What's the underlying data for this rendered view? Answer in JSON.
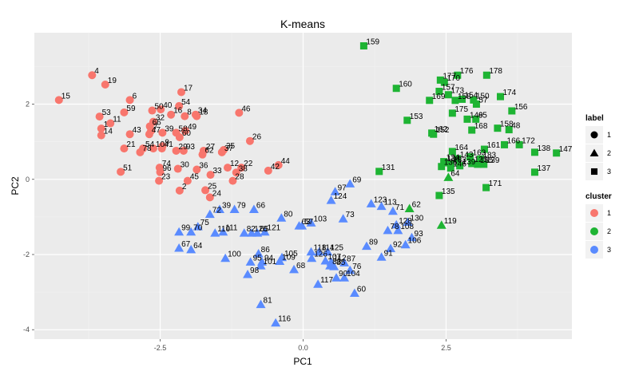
{
  "chart_data": {
    "type": "scatter",
    "title": "K-means",
    "xlabel": "PC1",
    "ylabel": "PC2",
    "xlim": [
      -4.7,
      4.7
    ],
    "ylim": [
      -4.25,
      3.9
    ],
    "x_ticks": [
      -2.5,
      0.0,
      2.5
    ],
    "x_tick_labels": [
      "-2.5",
      "0.0",
      "2.5"
    ],
    "y_ticks": [
      -4,
      -2,
      0,
      2
    ],
    "y_tick_labels": [
      "-4",
      "-2",
      "0",
      "2"
    ],
    "grid": true,
    "legend_position": "right",
    "legends": [
      {
        "title": "label",
        "entries": [
          {
            "key": "1",
            "shape": "circle"
          },
          {
            "key": "2",
            "shape": "triangle"
          },
          {
            "key": "3",
            "shape": "square"
          }
        ]
      },
      {
        "title": "cluster",
        "entries": [
          {
            "key": "1",
            "color": "#F8766D"
          },
          {
            "key": "2",
            "color": "#1EB433"
          },
          {
            "key": "3",
            "color": "#5A8BFF"
          }
        ]
      }
    ],
    "series": [
      {
        "name": "1",
        "cluster": 1,
        "color": "#F8766D",
        "shape": "circle",
        "points": [
          {
            "label": "4",
            "x": -3.69,
            "y": 2.77
          },
          {
            "label": "19",
            "x": -3.46,
            "y": 2.52
          },
          {
            "label": "15",
            "x": -4.27,
            "y": 2.11
          },
          {
            "label": "6",
            "x": -3.03,
            "y": 2.11
          },
          {
            "label": "17",
            "x": -2.13,
            "y": 2.32
          },
          {
            "label": "54",
            "x": -2.17,
            "y": 1.95
          },
          {
            "label": "40",
            "x": -2.49,
            "y": 1.86
          },
          {
            "label": "50",
            "x": -2.64,
            "y": 1.83
          },
          {
            "label": "59",
            "x": -3.13,
            "y": 1.78
          },
          {
            "label": "16",
            "x": -2.31,
            "y": 1.72
          },
          {
            "label": "8",
            "x": -2.07,
            "y": 1.68
          },
          {
            "label": "34",
            "x": -1.88,
            "y": 1.72
          },
          {
            "label": "18",
            "x": -1.86,
            "y": 1.68
          },
          {
            "label": "46",
            "x": -1.12,
            "y": 1.77
          },
          {
            "label": "53",
            "x": -3.56,
            "y": 1.67
          },
          {
            "label": "32",
            "x": -2.62,
            "y": 1.53
          },
          {
            "label": "11",
            "x": -3.37,
            "y": 1.49
          },
          {
            "label": "1",
            "x": -3.53,
            "y": 1.35
          },
          {
            "label": "66",
            "x": -2.68,
            "y": 1.41
          },
          {
            "label": "7",
            "x": -2.66,
            "y": 1.29
          },
          {
            "label": "58",
            "x": -2.22,
            "y": 1.24
          },
          {
            "label": "49",
            "x": -2.06,
            "y": 1.29
          },
          {
            "label": "14",
            "x": -3.53,
            "y": 1.17
          },
          {
            "label": "43",
            "x": -3.03,
            "y": 1.2
          },
          {
            "label": "47",
            "x": -2.69,
            "y": 1.2
          },
          {
            "label": "39",
            "x": -2.46,
            "y": 1.24
          },
          {
            "label": "60",
            "x": -2.16,
            "y": 1.12
          },
          {
            "label": "26",
            "x": -0.93,
            "y": 1.02
          },
          {
            "label": "9",
            "x": -2.46,
            "y": 0.88
          },
          {
            "label": "21",
            "x": -3.13,
            "y": 0.82
          },
          {
            "label": "54",
            "x": -2.8,
            "y": 0.82
          },
          {
            "label": "10",
            "x": -2.62,
            "y": 0.82
          },
          {
            "label": "41",
            "x": -2.47,
            "y": 0.82
          },
          {
            "label": "29",
            "x": -2.22,
            "y": 0.76
          },
          {
            "label": "93",
            "x": -2.09,
            "y": 0.76
          },
          {
            "label": "78",
            "x": -2.85,
            "y": 0.72
          },
          {
            "label": "35",
            "x": -1.39,
            "y": 0.78
          },
          {
            "label": "37",
            "x": -1.42,
            "y": 0.72
          },
          {
            "label": "27",
            "x": -1.74,
            "y": 0.76
          },
          {
            "label": "62",
            "x": -1.76,
            "y": 0.66
          },
          {
            "label": "44",
            "x": -0.43,
            "y": 0.38
          },
          {
            "label": "42",
            "x": -0.61,
            "y": 0.23
          },
          {
            "label": "51",
            "x": -3.19,
            "y": 0.2
          },
          {
            "label": "30",
            "x": -2.19,
            "y": 0.28
          },
          {
            "label": "36",
            "x": -1.86,
            "y": 0.26
          },
          {
            "label": "12",
            "x": -1.32,
            "y": 0.31
          },
          {
            "label": "22",
            "x": -1.08,
            "y": 0.31
          },
          {
            "label": "33",
            "x": -1.62,
            "y": 0.12
          },
          {
            "label": "38",
            "x": -1.17,
            "y": 0.18
          },
          {
            "label": "45",
            "x": -2.02,
            "y": -0.04
          },
          {
            "label": "28",
            "x": -1.23,
            "y": -0.04
          },
          {
            "label": "23",
            "x": -2.52,
            "y": -0.04
          },
          {
            "label": "96",
            "x": -2.5,
            "y": 0.19
          },
          {
            "label": "74",
            "x": -2.51,
            "y": 0.31
          },
          {
            "label": "25",
            "x": -1.71,
            "y": -0.29
          },
          {
            "label": "2",
            "x": -2.16,
            "y": -0.3
          },
          {
            "label": "24",
            "x": -1.63,
            "y": -0.48
          }
        ]
      },
      {
        "name": "2",
        "cluster": 2,
        "color": "#1EB433",
        "shape": "square",
        "points": [
          {
            "label": "159",
            "x": 1.06,
            "y": 3.55
          },
          {
            "label": "176",
            "x": 2.7,
            "y": 2.77
          },
          {
            "label": "178",
            "x": 3.21,
            "y": 2.77
          },
          {
            "label": "177",
            "x": 2.4,
            "y": 2.64
          },
          {
            "label": "170",
            "x": 2.47,
            "y": 2.58
          },
          {
            "label": "160",
            "x": 1.63,
            "y": 2.42
          },
          {
            "label": "157",
            "x": 2.38,
            "y": 2.34
          },
          {
            "label": "174",
            "x": 3.45,
            "y": 2.2
          },
          {
            "label": "173",
            "x": 2.54,
            "y": 2.25
          },
          {
            "label": "154",
            "x": 2.78,
            "y": 2.13
          },
          {
            "label": "150",
            "x": 2.98,
            "y": 2.11
          },
          {
            "label": "169",
            "x": 2.21,
            "y": 2.1
          },
          {
            "label": "158",
            "x": 2.66,
            "y": 2.1
          },
          {
            "label": "57",
            "x": 3.03,
            "y": 2.0
          },
          {
            "label": "156",
            "x": 3.65,
            "y": 1.82
          },
          {
            "label": "175",
            "x": 2.61,
            "y": 1.76
          },
          {
            "label": "149",
            "x": 2.87,
            "y": 1.6
          },
          {
            "label": "65",
            "x": 3.02,
            "y": 1.6
          },
          {
            "label": "153",
            "x": 1.82,
            "y": 1.57
          },
          {
            "label": "158",
            "x": 3.4,
            "y": 1.36
          },
          {
            "label": "48",
            "x": 3.6,
            "y": 1.32
          },
          {
            "label": "168",
            "x": 2.95,
            "y": 1.31
          },
          {
            "label": "162",
            "x": 2.25,
            "y": 1.23
          },
          {
            "label": "152",
            "x": 2.28,
            "y": 1.2
          },
          {
            "label": "166",
            "x": 3.52,
            "y": 0.92
          },
          {
            "label": "172",
            "x": 3.78,
            "y": 0.92
          },
          {
            "label": "161",
            "x": 3.17,
            "y": 0.8
          },
          {
            "label": "138",
            "x": 4.05,
            "y": 0.72
          },
          {
            "label": "147",
            "x": 4.43,
            "y": 0.7
          },
          {
            "label": "164",
            "x": 2.61,
            "y": 0.74
          },
          {
            "label": "163",
            "x": 2.92,
            "y": 0.6
          },
          {
            "label": "143",
            "x": 2.7,
            "y": 0.55
          },
          {
            "label": "183",
            "x": 3.1,
            "y": 0.54
          },
          {
            "label": "124",
            "x": 2.46,
            "y": 0.47
          },
          {
            "label": "134",
            "x": 2.47,
            "y": 0.44
          },
          {
            "label": "125",
            "x": 2.95,
            "y": 0.42
          },
          {
            "label": "165",
            "x": 3.05,
            "y": 0.4
          },
          {
            "label": "139",
            "x": 3.16,
            "y": 0.4
          },
          {
            "label": "133",
            "x": 2.58,
            "y": 0.41
          },
          {
            "label": "136",
            "x": 2.42,
            "y": 0.34
          },
          {
            "label": "146",
            "x": 2.58,
            "y": 0.3
          },
          {
            "label": "139",
            "x": 2.74,
            "y": 0.36
          },
          {
            "label": "131",
            "x": 1.33,
            "y": 0.21
          },
          {
            "label": "137",
            "x": 4.05,
            "y": 0.19
          },
          {
            "label": "171",
            "x": 3.2,
            "y": -0.22
          },
          {
            "label": "135",
            "x": 2.38,
            "y": -0.43
          }
        ]
      },
      {
        "name": "2",
        "cluster": 2,
        "color": "#1EB433",
        "shape": "triangle",
        "points": [
          {
            "label": "64",
            "x": 2.54,
            "y": 0.05
          },
          {
            "label": "62",
            "x": 1.86,
            "y": -0.78
          },
          {
            "label": "119",
            "x": 2.42,
            "y": -1.22
          }
        ]
      },
      {
        "name": "3",
        "cluster": 3,
        "color": "#5A8BFF",
        "shape": "triangle",
        "points": [
          {
            "label": "69",
            "x": 0.82,
            "y": -0.12
          },
          {
            "label": "97",
            "x": 0.56,
            "y": -0.33
          },
          {
            "label": "124",
            "x": 0.49,
            "y": -0.56
          },
          {
            "label": "123",
            "x": 1.19,
            "y": -0.65
          },
          {
            "label": "113",
            "x": 1.37,
            "y": -0.72
          },
          {
            "label": "71",
            "x": 1.57,
            "y": -0.85
          },
          {
            "label": "73",
            "x": 0.7,
            "y": -1.05
          },
          {
            "label": "130",
            "x": 1.83,
            "y": -1.14
          },
          {
            "label": "128",
            "x": 1.63,
            "y": -1.21
          },
          {
            "label": "78",
            "x": 1.48,
            "y": -1.36
          },
          {
            "label": "108",
            "x": 1.66,
            "y": -1.36
          },
          {
            "label": "93",
            "x": 1.9,
            "y": -1.55
          },
          {
            "label": "106",
            "x": 1.79,
            "y": -1.74
          },
          {
            "label": "89",
            "x": 1.11,
            "y": -1.78
          },
          {
            "label": "92",
            "x": 1.53,
            "y": -1.84
          },
          {
            "label": "91",
            "x": 1.37,
            "y": -2.07
          },
          {
            "label": "80",
            "x": -0.38,
            "y": -1.03
          },
          {
            "label": "103",
            "x": 0.14,
            "y": -1.16
          },
          {
            "label": "63",
            "x": -0.07,
            "y": -1.24
          },
          {
            "label": "57",
            "x": -0.02,
            "y": -1.24
          },
          {
            "label": "72",
            "x": -1.63,
            "y": -0.93
          },
          {
            "label": "39",
            "x": -1.46,
            "y": -0.8
          },
          {
            "label": "79",
            "x": -1.2,
            "y": -0.8
          },
          {
            "label": "66",
            "x": -0.86,
            "y": -0.8
          },
          {
            "label": "75",
            "x": -1.84,
            "y": -1.26
          },
          {
            "label": "99",
            "x": -2.17,
            "y": -1.4
          },
          {
            "label": "70",
            "x": -1.96,
            "y": -1.4
          },
          {
            "label": "110",
            "x": -1.54,
            "y": -1.43
          },
          {
            "label": "111",
            "x": -1.4,
            "y": -1.4
          },
          {
            "label": "82",
            "x": -1.03,
            "y": -1.43
          },
          {
            "label": "121",
            "x": -0.67,
            "y": -1.4
          },
          {
            "label": "126",
            "x": -0.9,
            "y": -1.43
          },
          {
            "label": "65",
            "x": -0.8,
            "y": -1.43
          },
          {
            "label": "67",
            "x": -2.17,
            "y": -1.83
          },
          {
            "label": "64",
            "x": -1.96,
            "y": -1.87
          },
          {
            "label": "100",
            "x": -1.36,
            "y": -2.1
          },
          {
            "label": "86",
            "x": -0.78,
            "y": -1.98
          },
          {
            "label": "95",
            "x": -0.92,
            "y": -2.2
          },
          {
            "label": "94",
            "x": -0.72,
            "y": -2.2
          },
          {
            "label": "101",
            "x": -0.74,
            "y": -2.3
          },
          {
            "label": "105",
            "x": -0.37,
            "y": -2.08
          },
          {
            "label": "109",
            "x": -0.41,
            "y": -2.18
          },
          {
            "label": "68",
            "x": -0.16,
            "y": -2.4
          },
          {
            "label": "98",
            "x": -0.97,
            "y": -2.53
          },
          {
            "label": "118",
            "x": 0.14,
            "y": -1.93
          },
          {
            "label": "114",
            "x": 0.28,
            "y": -1.93
          },
          {
            "label": "125",
            "x": 0.43,
            "y": -1.93
          },
          {
            "label": "126",
            "x": 0.15,
            "y": -2.1
          },
          {
            "label": "107",
            "x": 0.39,
            "y": -2.17
          },
          {
            "label": "112",
            "x": 0.49,
            "y": -2.2
          },
          {
            "label": "87",
            "x": 0.72,
            "y": -2.22
          },
          {
            "label": "83",
            "x": 0.47,
            "y": -2.3
          },
          {
            "label": "85",
            "x": 0.54,
            "y": -2.32
          },
          {
            "label": "76",
            "x": 0.82,
            "y": -2.42
          },
          {
            "label": "90",
            "x": 0.58,
            "y": -2.62
          },
          {
            "label": "104",
            "x": 0.72,
            "y": -2.62
          },
          {
            "label": "117",
            "x": 0.26,
            "y": -2.79
          },
          {
            "label": "60",
            "x": 0.9,
            "y": -3.03
          },
          {
            "label": "81",
            "x": -0.74,
            "y": -3.33
          },
          {
            "label": "116",
            "x": -0.48,
            "y": -3.82
          }
        ]
      }
    ]
  }
}
